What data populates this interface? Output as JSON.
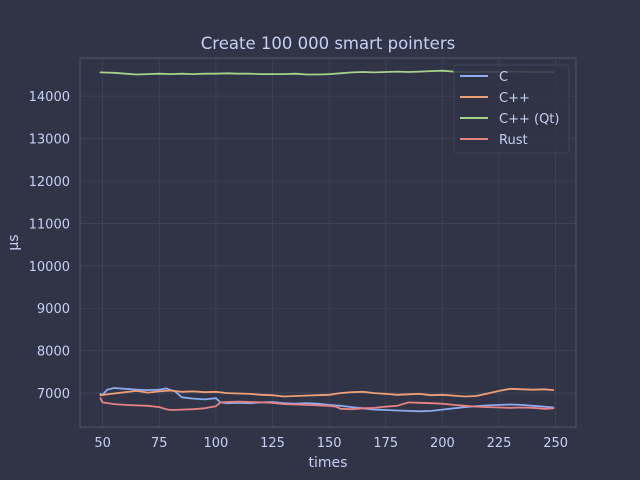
{
  "chart_data": {
    "type": "line",
    "title": "Create 100 000 smart pointers",
    "xlabel": "times",
    "ylabel": "µs",
    "xlim": [
      40,
      259
    ],
    "ylim": [
      6200,
      14900
    ],
    "xticks": [
      50,
      75,
      100,
      125,
      150,
      175,
      200,
      225,
      250
    ],
    "yticks": [
      7000,
      8000,
      9000,
      10000,
      11000,
      12000,
      13000,
      14000
    ],
    "grid": true,
    "legend_position": "top-right",
    "colors": {
      "background": "#303446",
      "text": "#c6d0f5",
      "grid": "#414559",
      "spine": "#51576d"
    },
    "series": [
      {
        "name": "C",
        "color": "#8caaee",
        "points": [
          [
            49,
            6980
          ],
          [
            50,
            6960
          ],
          [
            52,
            7080
          ],
          [
            55,
            7120
          ],
          [
            60,
            7100
          ],
          [
            65,
            7080
          ],
          [
            70,
            7070
          ],
          [
            75,
            7080
          ],
          [
            78,
            7110
          ],
          [
            80,
            7070
          ],
          [
            82,
            7040
          ],
          [
            85,
            6900
          ],
          [
            90,
            6870
          ],
          [
            95,
            6850
          ],
          [
            100,
            6880
          ],
          [
            102,
            6780
          ],
          [
            105,
            6760
          ],
          [
            110,
            6770
          ],
          [
            115,
            6760
          ],
          [
            120,
            6780
          ],
          [
            125,
            6790
          ],
          [
            130,
            6760
          ],
          [
            135,
            6750
          ],
          [
            140,
            6760
          ],
          [
            145,
            6750
          ],
          [
            150,
            6720
          ],
          [
            155,
            6700
          ],
          [
            160,
            6670
          ],
          [
            165,
            6640
          ],
          [
            170,
            6610
          ],
          [
            175,
            6600
          ],
          [
            180,
            6590
          ],
          [
            185,
            6580
          ],
          [
            190,
            6570
          ],
          [
            195,
            6580
          ],
          [
            200,
            6610
          ],
          [
            205,
            6640
          ],
          [
            210,
            6670
          ],
          [
            215,
            6690
          ],
          [
            220,
            6710
          ],
          [
            225,
            6720
          ],
          [
            230,
            6730
          ],
          [
            235,
            6720
          ],
          [
            240,
            6700
          ],
          [
            245,
            6680
          ],
          [
            249,
            6660
          ]
        ]
      },
      {
        "name": "C++",
        "color": "#ef9f76",
        "points": [
          [
            49,
            6950
          ],
          [
            55,
            6990
          ],
          [
            60,
            7020
          ],
          [
            65,
            7050
          ],
          [
            70,
            7010
          ],
          [
            75,
            7040
          ],
          [
            80,
            7060
          ],
          [
            85,
            7030
          ],
          [
            90,
            7040
          ],
          [
            95,
            7020
          ],
          [
            100,
            7030
          ],
          [
            105,
            7000
          ],
          [
            110,
            6990
          ],
          [
            115,
            6980
          ],
          [
            120,
            6960
          ],
          [
            125,
            6950
          ],
          [
            130,
            6920
          ],
          [
            135,
            6930
          ],
          [
            140,
            6940
          ],
          [
            145,
            6950
          ],
          [
            150,
            6960
          ],
          [
            155,
            7000
          ],
          [
            160,
            7020
          ],
          [
            165,
            7030
          ],
          [
            170,
            7000
          ],
          [
            175,
            6980
          ],
          [
            180,
            6960
          ],
          [
            185,
            6970
          ],
          [
            190,
            6980
          ],
          [
            195,
            6950
          ],
          [
            200,
            6960
          ],
          [
            205,
            6940
          ],
          [
            210,
            6920
          ],
          [
            215,
            6930
          ],
          [
            220,
            6990
          ],
          [
            225,
            7050
          ],
          [
            230,
            7100
          ],
          [
            235,
            7090
          ],
          [
            240,
            7080
          ],
          [
            245,
            7090
          ],
          [
            249,
            7070
          ]
        ]
      },
      {
        "name": "C++ (Qt)",
        "color": "#a6d189",
        "points": [
          [
            49,
            14560
          ],
          [
            55,
            14550
          ],
          [
            60,
            14530
          ],
          [
            65,
            14510
          ],
          [
            70,
            14520
          ],
          [
            75,
            14530
          ],
          [
            80,
            14520
          ],
          [
            85,
            14530
          ],
          [
            90,
            14520
          ],
          [
            95,
            14530
          ],
          [
            100,
            14530
          ],
          [
            105,
            14540
          ],
          [
            110,
            14530
          ],
          [
            115,
            14530
          ],
          [
            120,
            14520
          ],
          [
            125,
            14520
          ],
          [
            130,
            14520
          ],
          [
            135,
            14530
          ],
          [
            140,
            14510
          ],
          [
            145,
            14510
          ],
          [
            150,
            14520
          ],
          [
            155,
            14540
          ],
          [
            160,
            14560
          ],
          [
            165,
            14570
          ],
          [
            170,
            14560
          ],
          [
            175,
            14570
          ],
          [
            180,
            14580
          ],
          [
            185,
            14570
          ],
          [
            190,
            14580
          ],
          [
            195,
            14590
          ],
          [
            200,
            14600
          ],
          [
            205,
            14580
          ],
          [
            210,
            14570
          ],
          [
            215,
            14570
          ],
          [
            220,
            14580
          ],
          [
            225,
            14570
          ],
          [
            230,
            14580
          ],
          [
            235,
            14580
          ],
          [
            240,
            14570
          ],
          [
            245,
            14570
          ],
          [
            249,
            14560
          ]
        ]
      },
      {
        "name": "Rust",
        "color": "#e78284",
        "points": [
          [
            49,
            6880
          ],
          [
            50,
            6780
          ],
          [
            55,
            6740
          ],
          [
            60,
            6720
          ],
          [
            65,
            6710
          ],
          [
            70,
            6700
          ],
          [
            75,
            6670
          ],
          [
            78,
            6620
          ],
          [
            80,
            6600
          ],
          [
            85,
            6610
          ],
          [
            90,
            6620
          ],
          [
            95,
            6640
          ],
          [
            100,
            6690
          ],
          [
            102,
            6780
          ],
          [
            105,
            6790
          ],
          [
            110,
            6800
          ],
          [
            115,
            6790
          ],
          [
            120,
            6780
          ],
          [
            125,
            6770
          ],
          [
            130,
            6740
          ],
          [
            135,
            6730
          ],
          [
            140,
            6720
          ],
          [
            145,
            6710
          ],
          [
            150,
            6700
          ],
          [
            153,
            6680
          ],
          [
            155,
            6630
          ],
          [
            160,
            6620
          ],
          [
            165,
            6640
          ],
          [
            170,
            6650
          ],
          [
            175,
            6680
          ],
          [
            180,
            6700
          ],
          [
            185,
            6780
          ],
          [
            190,
            6770
          ],
          [
            195,
            6760
          ],
          [
            200,
            6750
          ],
          [
            205,
            6720
          ],
          [
            210,
            6700
          ],
          [
            215,
            6680
          ],
          [
            220,
            6670
          ],
          [
            225,
            6660
          ],
          [
            230,
            6650
          ],
          [
            235,
            6660
          ],
          [
            240,
            6650
          ],
          [
            245,
            6630
          ],
          [
            249,
            6640
          ]
        ]
      }
    ]
  }
}
